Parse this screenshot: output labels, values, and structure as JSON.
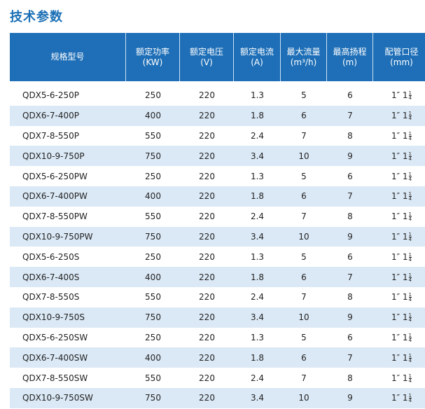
{
  "page_title": "技术参数",
  "table": {
    "headers": [
      {
        "line1": "规格型号",
        "line2": ""
      },
      {
        "line1": "额定功率",
        "line2": "(KW)"
      },
      {
        "line1": "额定电压",
        "line2": "(V)"
      },
      {
        "line1": "额定电流",
        "line2": "(A)"
      },
      {
        "line1": "最大流量",
        "line2": "(m³/h)"
      },
      {
        "line1": "最高扬程",
        "line2": "(m)"
      },
      {
        "line1": "配管口径",
        "line2": "(mm)"
      }
    ],
    "rows": [
      {
        "model": "QDX5-6-250P",
        "power": "250",
        "voltage": "220",
        "current": "1.3",
        "flow": "5",
        "head": "6",
        "pipe": "1″ 1",
        "pipe_num": "1",
        "pipe_den": "4"
      },
      {
        "model": "QDX6-7-400P",
        "power": "400",
        "voltage": "220",
        "current": "1.8",
        "flow": "6",
        "head": "7",
        "pipe": "1″ 1",
        "pipe_num": "1",
        "pipe_den": "4"
      },
      {
        "model": "QDX7-8-550P",
        "power": "550",
        "voltage": "220",
        "current": "2.4",
        "flow": "7",
        "head": "8",
        "pipe": "1″ 1",
        "pipe_num": "1",
        "pipe_den": "4"
      },
      {
        "model": "QDX10-9-750P",
        "power": "750",
        "voltage": "220",
        "current": "3.4",
        "flow": "10",
        "head": "9",
        "pipe": "1″ 1",
        "pipe_num": "1",
        "pipe_den": "4"
      },
      {
        "model": "QDX5-6-250PW",
        "power": "250",
        "voltage": "220",
        "current": "1.3",
        "flow": "5",
        "head": "6",
        "pipe": "1″ 1",
        "pipe_num": "1",
        "pipe_den": "4"
      },
      {
        "model": "QDX6-7-400PW",
        "power": "400",
        "voltage": "220",
        "current": "1.8",
        "flow": "6",
        "head": "7",
        "pipe": "1″ 1",
        "pipe_num": "1",
        "pipe_den": "4"
      },
      {
        "model": "QDX7-8-550PW",
        "power": "550",
        "voltage": "220",
        "current": "2.4",
        "flow": "7",
        "head": "8",
        "pipe": "1″ 1",
        "pipe_num": "1",
        "pipe_den": "4"
      },
      {
        "model": "QDX10-9-750PW",
        "power": "750",
        "voltage": "220",
        "current": "3.4",
        "flow": "10",
        "head": "9",
        "pipe": "1″ 1",
        "pipe_num": "1",
        "pipe_den": "4"
      },
      {
        "model": "QDX5-6-250S",
        "power": "250",
        "voltage": "220",
        "current": "1.3",
        "flow": "5",
        "head": "6",
        "pipe": "1″ 1",
        "pipe_num": "1",
        "pipe_den": "4"
      },
      {
        "model": "QDX6-7-400S",
        "power": "400",
        "voltage": "220",
        "current": "1.8",
        "flow": "6",
        "head": "7",
        "pipe": "1″ 1",
        "pipe_num": "1",
        "pipe_den": "4"
      },
      {
        "model": "QDX7-8-550S",
        "power": "550",
        "voltage": "220",
        "current": "2.4",
        "flow": "7",
        "head": "8",
        "pipe": "1″ 1",
        "pipe_num": "1",
        "pipe_den": "4"
      },
      {
        "model": "QDX10-9-750S",
        "power": "750",
        "voltage": "220",
        "current": "3.4",
        "flow": "10",
        "head": "9",
        "pipe": "1″ 1",
        "pipe_num": "1",
        "pipe_den": "4"
      },
      {
        "model": "QDX5-6-250SW",
        "power": "250",
        "voltage": "220",
        "current": "1.3",
        "flow": "5",
        "head": "6",
        "pipe": "1″ 1",
        "pipe_num": "1",
        "pipe_den": "4"
      },
      {
        "model": "QDX6-7-400SW",
        "power": "400",
        "voltage": "220",
        "current": "1.8",
        "flow": "6",
        "head": "7",
        "pipe": "1″ 1",
        "pipe_num": "1",
        "pipe_den": "4"
      },
      {
        "model": "QDX7-8-550SW",
        "power": "550",
        "voltage": "220",
        "current": "2.4",
        "flow": "7",
        "head": "8",
        "pipe": "1″ 1",
        "pipe_num": "1",
        "pipe_den": "4"
      },
      {
        "model": "QDX10-9-750SW",
        "power": "750",
        "voltage": "220",
        "current": "3.4",
        "flow": "10",
        "head": "9",
        "pipe": "1″ 1",
        "pipe_num": "1",
        "pipe_den": "4"
      }
    ]
  },
  "colors": {
    "title": "#1a6fb5",
    "header_bg": "#1e6fb7",
    "row_alt_bg": "#dbe9f6"
  }
}
